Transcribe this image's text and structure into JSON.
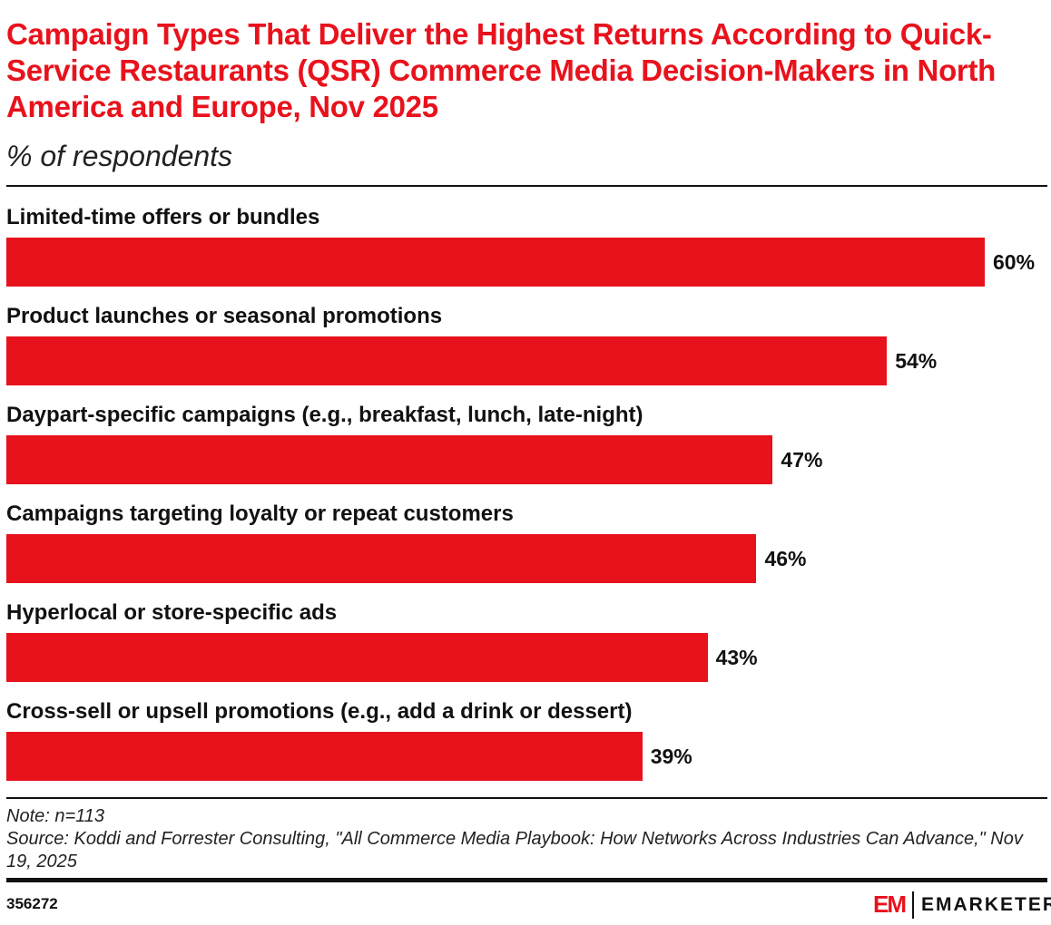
{
  "title": "Campaign Types That Deliver the Highest Returns According to Quick-Service Restaurants (QSR) Commerce Media Decision-Makers in North America and Europe, Nov 2025",
  "subtitle": "% of respondents",
  "colors": {
    "bar": "#e8121c",
    "title": "#e8121c"
  },
  "chart_data": {
    "type": "bar",
    "orientation": "horizontal",
    "title": "Campaign Types That Deliver the Highest Returns According to Quick-Service Restaurants (QSR) Commerce Media Decision-Makers in North America and Europe, Nov 2025",
    "ylabel": "% of respondents",
    "xlim": [
      0,
      60
    ],
    "categories": [
      "Limited-time offers or bundles",
      "Product launches or seasonal promotions",
      "Daypart-specific campaigns (e.g., breakfast, lunch, late-night)",
      "Campaigns targeting loyalty or repeat customers",
      "Hyperlocal or store-specific ads",
      "Cross-sell or upsell promotions (e.g., add a drink or dessert)"
    ],
    "values": [
      60,
      54,
      47,
      46,
      43,
      39
    ],
    "value_labels": [
      "60%",
      "54%",
      "47%",
      "46%",
      "43%",
      "39%"
    ]
  },
  "note": "Note: n=113",
  "source": "Source: Koddi and Forrester Consulting, \"All Commerce Media Playbook: How Networks Across Industries Can Advance,\" Nov 19, 2025",
  "chart_id": "356272",
  "logo": {
    "mark": "EM",
    "brand": "EMARKETER"
  }
}
